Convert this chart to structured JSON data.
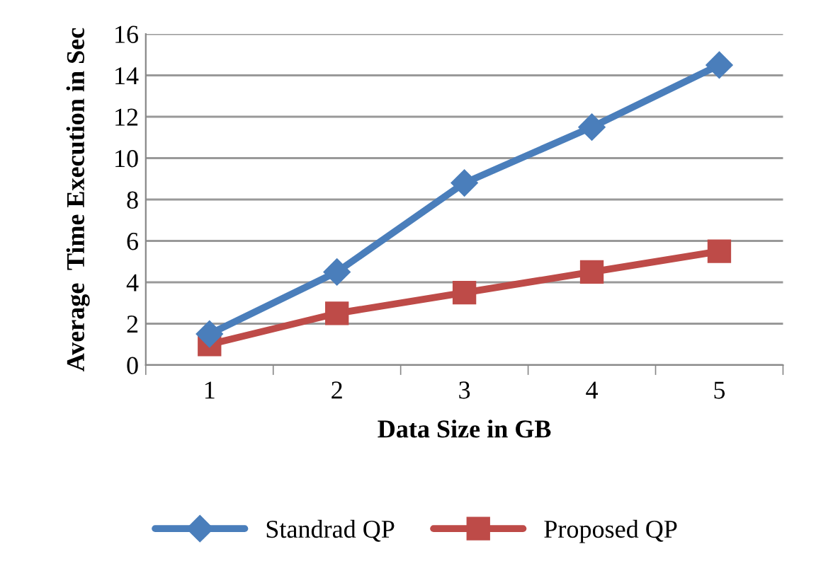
{
  "chart_data": {
    "type": "line",
    "xlabel": "Data Size in GB",
    "ylabel": "Average  Time Execution in Sec",
    "categories": [
      "1",
      "2",
      "3",
      "4",
      "5"
    ],
    "series": [
      {
        "name": "Standrad QP",
        "color": "#4a7ebb",
        "marker": "diamond",
        "values": [
          1.5,
          4.5,
          8.8,
          11.5,
          14.5
        ]
      },
      {
        "name": "Proposed QP",
        "color": "#be4b48",
        "marker": "square",
        "values": [
          1.0,
          2.5,
          3.5,
          4.5,
          5.5
        ]
      }
    ],
    "ylim": [
      0,
      16
    ],
    "yticks": [
      0,
      2,
      4,
      6,
      8,
      10,
      12,
      14,
      16
    ],
    "grid": "y",
    "legend": "bottom",
    "line_style": "solid"
  }
}
